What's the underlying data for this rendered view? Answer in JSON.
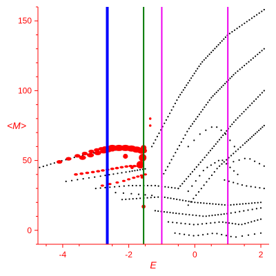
{
  "chart_data": {
    "type": "scatter",
    "title": "",
    "xlabel": "E",
    "ylabel": "<M>",
    "xlim": [
      -4.75,
      2.25
    ],
    "ylim": [
      -10,
      160
    ],
    "x_ticks": [
      -4,
      -2,
      0,
      2
    ],
    "x_tick_labels": [
      "-4",
      "-2",
      "0",
      "2"
    ],
    "y_ticks": [
      0,
      50,
      100,
      150
    ],
    "y_tick_labels": [
      "0",
      "50",
      "100",
      "150"
    ],
    "colors": {
      "axes": "#ff0000",
      "black_points": "#000000",
      "red_points": "#ff0000",
      "blue_line": "#0000ff",
      "green_line": "#007700",
      "magenta_line": "#ee00ee"
    },
    "vertical_lines": [
      {
        "x": -2.65,
        "color": "#0000ff",
        "width": 4
      },
      {
        "x": -1.55,
        "color": "#007700",
        "width": 2
      },
      {
        "x": -1.0,
        "color": "#ee00ee",
        "width": 2
      },
      {
        "x": 1.0,
        "color": "#ee00ee",
        "width": 2
      }
    ],
    "black_curves": [
      {
        "xs": [
          -4.7,
          -4.0,
          -3.2,
          -2.6,
          -2.2
        ],
        "ys": [
          45,
          50,
          55,
          57,
          58
        ],
        "n": 26
      },
      {
        "xs": [
          -1.3,
          -0.5,
          0.2,
          1.0,
          2.1
        ],
        "ys": [
          60,
          95,
          120,
          140,
          158
        ],
        "n": 60
      },
      {
        "xs": [
          -1.0,
          -0.2,
          0.5,
          1.2,
          2.1
        ],
        "ys": [
          38,
          72,
          95,
          112,
          130
        ],
        "n": 55
      },
      {
        "xs": [
          -0.5,
          0.4,
          1.2,
          2.1
        ],
        "ys": [
          30,
          55,
          78,
          100
        ],
        "n": 45
      },
      {
        "xs": [
          -0.2,
          0.7,
          1.5,
          2.1
        ],
        "ys": [
          18,
          45,
          62,
          75
        ],
        "n": 35
      },
      {
        "xs": [
          -0.2,
          0.2,
          0.6,
          0.9,
          1.2
        ],
        "ys": [
          60,
          70,
          75,
          70,
          60
        ],
        "n": 10
      },
      {
        "xs": [
          -0.2,
          0.3,
          0.8,
          1.3
        ],
        "ys": [
          28,
          44,
          51,
          40
        ],
        "n": 14
      },
      {
        "xs": [
          -3.9,
          -2.8,
          -2.0,
          -1.5
        ],
        "ys": [
          35,
          39,
          42,
          44
        ],
        "n": 20
      },
      {
        "xs": [
          -3.0,
          -2.0,
          -1.2,
          -0.5
        ],
        "ys": [
          30,
          32,
          32,
          30
        ],
        "n": 22
      },
      {
        "xs": [
          -2.2,
          -1.0,
          0.0,
          1.0,
          2.0
        ],
        "ys": [
          22,
          24,
          20,
          18,
          20
        ],
        "n": 45
      },
      {
        "xs": [
          -2.4,
          -1.8,
          -1.3
        ],
        "ys": [
          27,
          26,
          25
        ],
        "n": 6
      },
      {
        "xs": [
          -1.2,
          -0.5,
          0.3,
          1.0,
          2.0
        ],
        "ys": [
          14,
          12,
          10,
          12,
          16
        ],
        "n": 32
      },
      {
        "xs": [
          -0.8,
          0.0,
          0.8,
          1.4,
          2.0
        ],
        "ys": [
          6,
          4,
          6,
          4,
          8
        ],
        "n": 26
      },
      {
        "xs": [
          -0.6,
          0.0,
          0.6,
          1.2,
          2.0
        ],
        "ys": [
          -2,
          -4,
          -2,
          -5,
          -2
        ],
        "n": 18
      },
      {
        "xs": [
          0.9,
          1.5,
          2.1
        ],
        "ys": [
          36,
          32,
          30
        ],
        "n": 10
      },
      {
        "xs": [
          1.0,
          1.6,
          2.1
        ],
        "ys": [
          48,
          52,
          46
        ],
        "n": 8
      }
    ],
    "red_curves": [
      {
        "xs": [
          -4.1,
          -3.6,
          -3.2,
          -2.9,
          -2.7,
          -2.5
        ],
        "ys": [
          49,
          53,
          56,
          58,
          59,
          59
        ],
        "n": 10,
        "r": 2.6
      },
      {
        "xs": [
          -3.4,
          -3.0,
          -2.7,
          -2.5
        ],
        "ys": [
          52,
          55,
          57,
          58
        ],
        "n": 6,
        "r": 3.2
      },
      {
        "xs": [
          -2.5,
          -2.0,
          -1.6
        ],
        "ys": [
          59,
          59,
          57
        ],
        "n": 6,
        "r": 4.5
      },
      {
        "xs": [
          -3.6,
          -3.0,
          -2.5,
          -2.0,
          -1.6
        ],
        "ys": [
          40,
          42,
          44,
          46,
          46
        ],
        "n": 15,
        "r": 1.8
      },
      {
        "xs": [
          -2.8,
          -2.2,
          -1.8,
          -1.5
        ],
        "ys": [
          32,
          35,
          38,
          40
        ],
        "n": 9,
        "r": 1.6
      }
    ],
    "red_points": [
      {
        "x": -1.55,
        "y": 59,
        "r": 4.2
      },
      {
        "x": -1.58,
        "y": 52,
        "r": 5.5
      },
      {
        "x": -1.65,
        "y": 47,
        "r": 5.5
      },
      {
        "x": -2.1,
        "y": 53,
        "r": 3.6
      },
      {
        "x": -1.35,
        "y": 75,
        "r": 1.8
      },
      {
        "x": -1.35,
        "y": 80,
        "r": 1.8
      },
      {
        "x": -1.55,
        "y": 17,
        "r": 2.8
      },
      {
        "x": -1.9,
        "y": 45,
        "r": 2.4
      },
      {
        "x": -1.6,
        "y": 38,
        "r": 2
      }
    ]
  }
}
